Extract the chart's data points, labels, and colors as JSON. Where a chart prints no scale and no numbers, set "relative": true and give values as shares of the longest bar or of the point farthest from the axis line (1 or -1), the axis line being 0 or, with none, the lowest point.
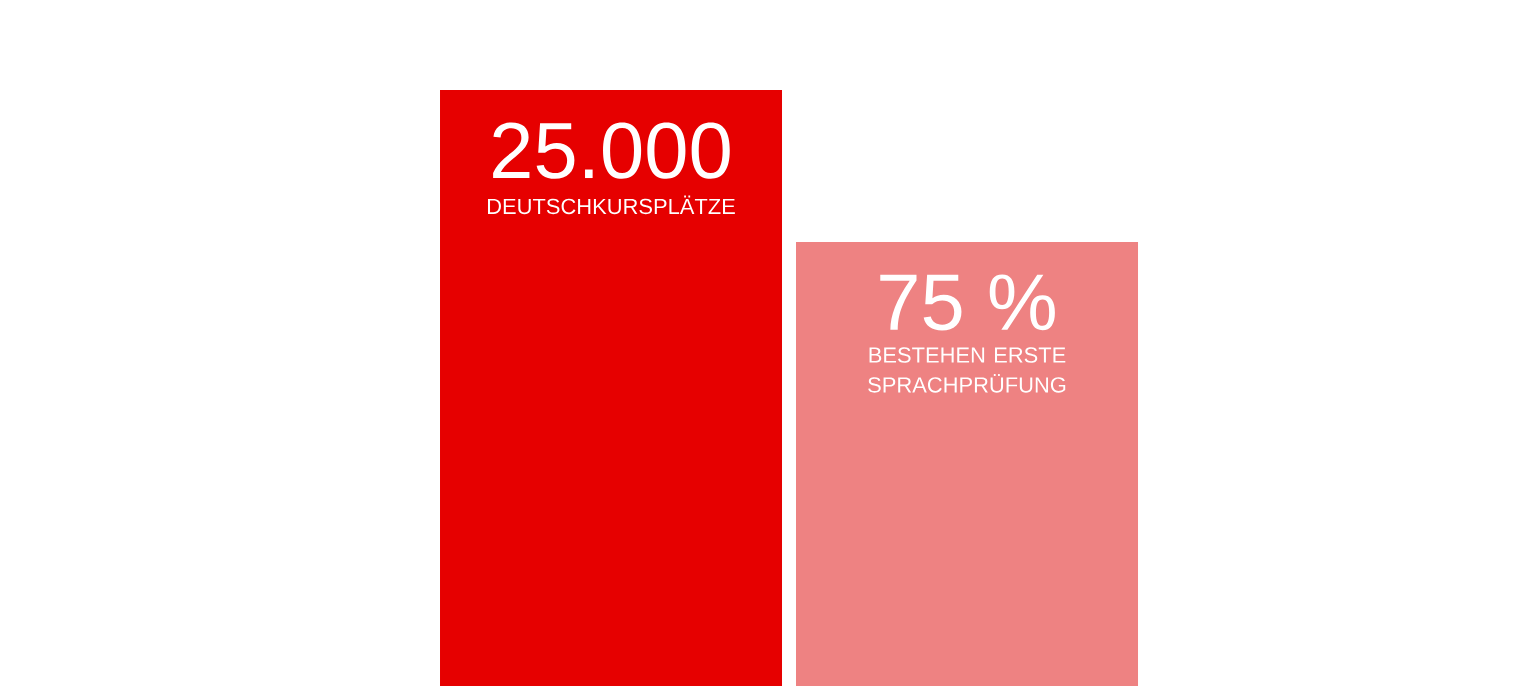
{
  "chart_data": {
    "type": "bar",
    "relative": true,
    "categories": [
      "DEUTSCHKURSPLÄTZE",
      "BESTEHEN ERSTE SPRACHPRÜFUNG"
    ],
    "values": [
      1,
      0.745
    ],
    "colors": [
      "#e60000",
      "#ee8282"
    ],
    "annotations": [
      {
        "text": "25.000",
        "x": "DEUTSCHKURSPLÄTZE",
        "y": 1
      },
      {
        "text": "75 %",
        "x": "BESTEHEN ERSTE SPRACHPRÜFUNG",
        "y": 0.745
      }
    ]
  }
}
